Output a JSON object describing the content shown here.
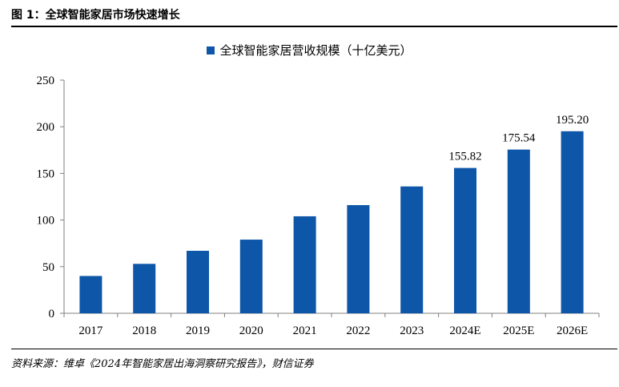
{
  "figure": {
    "title": "图 1：全球智能家居市场快速增长",
    "source": "资料来源：维卓《2024年智能家居出海洞察研究报告》，财信证券"
  },
  "chart_data": {
    "type": "bar",
    "categories": [
      "2017",
      "2018",
      "2019",
      "2020",
      "2021",
      "2022",
      "2023",
      "2024E",
      "2025E",
      "2026E"
    ],
    "series": [
      {
        "name": "全球智能家居营收规模（十亿美元）",
        "values": [
          40,
          53,
          67,
          79,
          104,
          116,
          136,
          155.82,
          175.54,
          195.2
        ],
        "data_labels": [
          "",
          "",
          "",
          "",
          "",
          "",
          "",
          "155.82",
          "175.54",
          "195.20"
        ],
        "color": "#0E56A8"
      }
    ],
    "ylim": [
      0,
      250
    ],
    "yticks": [
      0,
      50,
      100,
      150,
      200,
      250
    ],
    "legend_position": "top-center",
    "grid": false
  }
}
